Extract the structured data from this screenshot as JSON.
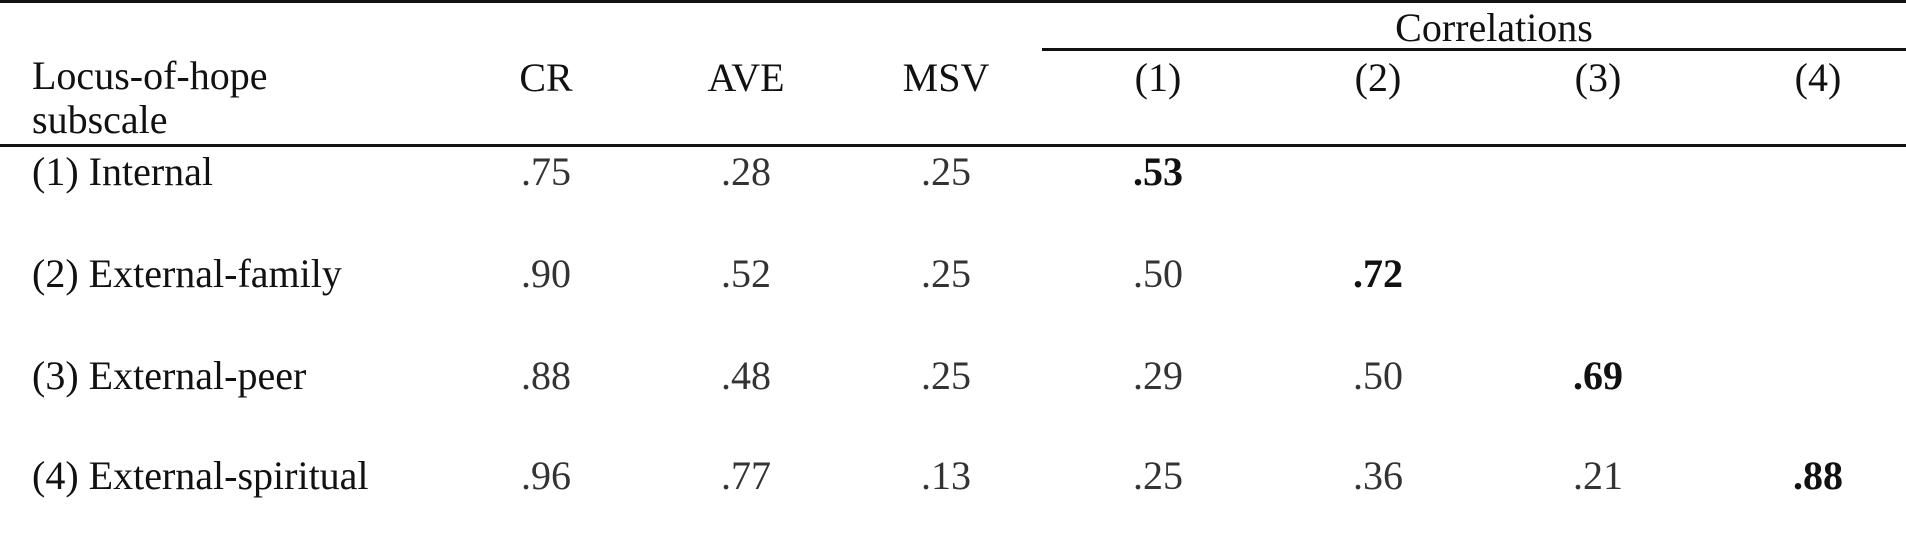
{
  "table": {
    "correlations_heading": "Correlations",
    "header": {
      "subscale": "Locus-of-hope subscale",
      "cr": "CR",
      "ave": "AVE",
      "msv": "MSV",
      "c1": "(1)",
      "c2": "(2)",
      "c3": "(3)",
      "c4": "(4)"
    },
    "rows": [
      {
        "label": "(1) Internal",
        "cr": ".75",
        "ave": ".28",
        "msv": ".25",
        "c1": ".53",
        "c2": "",
        "c3": "",
        "c4": ""
      },
      {
        "label": "(2) External-family",
        "cr": ".90",
        "ave": ".52",
        "msv": ".25",
        "c1": ".50",
        "c2": ".72",
        "c3": "",
        "c4": ""
      },
      {
        "label": "(3) External-peer",
        "cr": ".88",
        "ave": ".48",
        "msv": ".25",
        "c1": ".29",
        "c2": ".50",
        "c3": ".69",
        "c4": ""
      },
      {
        "label": "(4) External-spiritual",
        "cr": ".96",
        "ave": ".77",
        "msv": ".13",
        "c1": ".25",
        "c2": ".36",
        "c3": ".21",
        "c4": ".88"
      }
    ]
  }
}
